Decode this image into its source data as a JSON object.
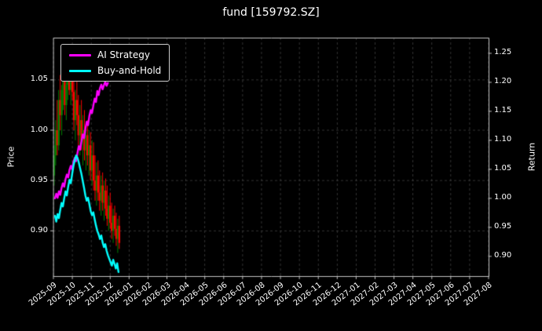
{
  "title": "fund [159792.SZ]",
  "chart_data": {
    "type": "line+candlestick",
    "title": "fund [159792.SZ]",
    "ylabel_left": "Price",
    "ylabel_right": "Return",
    "background": "#000000",
    "text_color": "#ffffff",
    "grid": true,
    "grid_color": "#3f3f3f",
    "spine_color": "#c2c2c2",
    "legend_position": "upper-left",
    "xlim": [
      0,
      23
    ],
    "ylim_left": [
      0.855,
      1.092
    ],
    "ylim_right": [
      0.866,
      1.277
    ],
    "x_tick_labels": [
      "2025-09",
      "2025-10",
      "2025-11",
      "2025-12",
      "2026-01",
      "2026-02",
      "2026-03",
      "2026-04",
      "2026-05",
      "2026-06",
      "2026-07",
      "2026-08",
      "2026-09",
      "2026-10",
      "2026-11",
      "2026-12",
      "2027-01",
      "2027-02",
      "2027-03",
      "2027-04",
      "2027-05",
      "2027-06",
      "2027-07",
      "2027-08"
    ],
    "yticks_left": [
      {
        "v": 0.9,
        "label": "0.90"
      },
      {
        "v": 0.95,
        "label": "0.95"
      },
      {
        "v": 1.0,
        "label": "1.00"
      },
      {
        "v": 1.05,
        "label": "1.05"
      }
    ],
    "yticks_right": [
      {
        "v": 0.9,
        "label": "0.90"
      },
      {
        "v": 0.95,
        "label": "0.95"
      },
      {
        "v": 1.0,
        "label": "1.00"
      },
      {
        "v": 1.05,
        "label": "1.05"
      },
      {
        "v": 1.1,
        "label": "1.10"
      },
      {
        "v": 1.15,
        "label": "1.15"
      },
      {
        "v": 1.2,
        "label": "1.20"
      },
      {
        "v": 1.25,
        "label": "1.25"
      }
    ],
    "series": [
      {
        "name": "AI Strategy",
        "axis": "right",
        "color": "#ff00ff",
        "x": [
          0.08,
          0.15,
          0.22,
          0.29,
          0.36,
          0.43,
          0.5,
          0.57,
          0.64,
          0.71,
          0.78,
          0.85,
          0.92,
          0.99,
          1.06,
          1.13,
          1.2,
          1.27,
          1.34,
          1.41,
          1.48,
          1.55,
          1.62,
          1.69,
          1.76,
          1.83,
          1.9,
          1.97,
          2.04,
          2.11,
          2.18,
          2.25,
          2.32,
          2.39,
          2.46,
          2.53,
          2.6,
          2.67,
          2.74,
          2.81,
          2.88
        ],
        "y": [
          1.0,
          1.008,
          1.001,
          1.012,
          1.006,
          1.018,
          1.026,
          1.02,
          1.033,
          1.041,
          1.036,
          1.049,
          1.056,
          1.05,
          1.063,
          1.07,
          1.064,
          1.078,
          1.09,
          1.084,
          1.098,
          1.11,
          1.104,
          1.12,
          1.132,
          1.126,
          1.142,
          1.152,
          1.147,
          1.16,
          1.172,
          1.166,
          1.185,
          1.178,
          1.19,
          1.196,
          1.188,
          1.195,
          1.201,
          1.194,
          1.199
        ]
      },
      {
        "name": "Buy-and-Hold",
        "axis": "right",
        "color": "#00ffff",
        "x": [
          0.08,
          0.15,
          0.22,
          0.29,
          0.36,
          0.43,
          0.5,
          0.57,
          0.64,
          0.71,
          0.78,
          0.85,
          0.92,
          0.99,
          1.06,
          1.13,
          1.2,
          1.27,
          1.34,
          1.41,
          1.48,
          1.55,
          1.62,
          1.69,
          1.76,
          1.83,
          1.9,
          1.97,
          2.04,
          2.11,
          2.18,
          2.25,
          2.32,
          2.39,
          2.46,
          2.53,
          2.6,
          2.67,
          2.74,
          2.81,
          2.88,
          2.95,
          3.02,
          3.09,
          3.16,
          3.23,
          3.3,
          3.37,
          3.44
        ],
        "y": [
          0.97,
          0.96,
          0.973,
          0.966,
          0.98,
          0.992,
          0.986,
          1.0,
          1.012,
          1.005,
          1.02,
          1.032,
          1.026,
          1.042,
          1.056,
          1.066,
          1.074,
          1.07,
          1.062,
          1.052,
          1.042,
          1.03,
          1.018,
          1.005,
          0.996,
          1.001,
          0.99,
          0.978,
          0.971,
          0.976,
          0.964,
          0.953,
          0.944,
          0.938,
          0.93,
          0.936,
          0.924,
          0.916,
          0.921,
          0.91,
          0.902,
          0.896,
          0.89,
          0.884,
          0.894,
          0.887,
          0.879,
          0.888,
          0.873
        ]
      }
    ],
    "candles": {
      "axis": "left",
      "up_color": "#008000",
      "down_color": "#ff0000",
      "x": [
        0.04,
        0.12,
        0.2,
        0.28,
        0.36,
        0.44,
        0.52,
        0.6,
        0.68,
        0.76,
        0.84,
        0.92,
        1.0,
        1.08,
        1.16,
        1.24,
        1.32,
        1.4,
        1.48,
        1.56,
        1.64,
        1.72,
        1.8,
        1.88,
        1.96,
        2.04,
        2.12,
        2.2,
        2.28,
        2.36,
        2.44,
        2.52,
        2.6,
        2.68,
        2.76,
        2.84,
        2.92,
        3.0,
        3.08,
        3.16,
        3.24,
        3.32,
        3.4,
        3.48
      ],
      "open": [
        0.955,
        0.975,
        1.0,
        0.985,
        1.03,
        1.015,
        1.04,
        1.05,
        1.025,
        1.045,
        1.06,
        1.04,
        1.055,
        1.038,
        1.01,
        1.03,
        1.015,
        0.995,
        1.01,
        0.99,
        1.0,
        0.98,
        0.995,
        0.975,
        0.985,
        0.96,
        0.975,
        0.95,
        0.94,
        0.955,
        0.938,
        0.93,
        0.945,
        0.928,
        0.94,
        0.922,
        0.912,
        0.925,
        0.908,
        0.9,
        0.915,
        0.902,
        0.892,
        0.905
      ],
      "high": [
        0.985,
        1.01,
        1.03,
        1.04,
        1.055,
        1.045,
        1.065,
        1.07,
        1.06,
        1.07,
        1.072,
        1.068,
        1.07,
        1.055,
        1.04,
        1.05,
        1.035,
        1.025,
        1.03,
        1.015,
        1.02,
        1.005,
        1.01,
        1.0,
        0.998,
        0.99,
        0.988,
        0.975,
        0.968,
        0.97,
        0.96,
        0.955,
        0.958,
        0.95,
        0.952,
        0.945,
        0.935,
        0.938,
        0.928,
        0.922,
        0.925,
        0.918,
        0.912,
        0.915
      ],
      "low": [
        0.945,
        0.965,
        0.975,
        0.98,
        1.0,
        0.995,
        1.02,
        1.015,
        1.01,
        1.03,
        1.035,
        1.025,
        1.03,
        1.0,
        0.99,
        1.005,
        0.985,
        0.975,
        0.98,
        0.965,
        0.97,
        0.96,
        0.965,
        0.955,
        0.95,
        0.945,
        0.94,
        0.93,
        0.925,
        0.93,
        0.92,
        0.915,
        0.92,
        0.91,
        0.915,
        0.905,
        0.9,
        0.902,
        0.892,
        0.888,
        0.895,
        0.885,
        0.878,
        0.882
      ],
      "close": [
        0.975,
        1.0,
        0.985,
        1.03,
        1.015,
        1.04,
        1.05,
        1.025,
        1.045,
        1.06,
        1.04,
        1.055,
        1.038,
        1.01,
        1.03,
        1.015,
        0.995,
        1.01,
        0.99,
        1.0,
        0.98,
        0.995,
        0.975,
        0.985,
        0.96,
        0.975,
        0.95,
        0.94,
        0.955,
        0.938,
        0.93,
        0.945,
        0.928,
        0.94,
        0.922,
        0.912,
        0.925,
        0.908,
        0.9,
        0.915,
        0.902,
        0.892,
        0.905,
        0.888
      ]
    }
  }
}
